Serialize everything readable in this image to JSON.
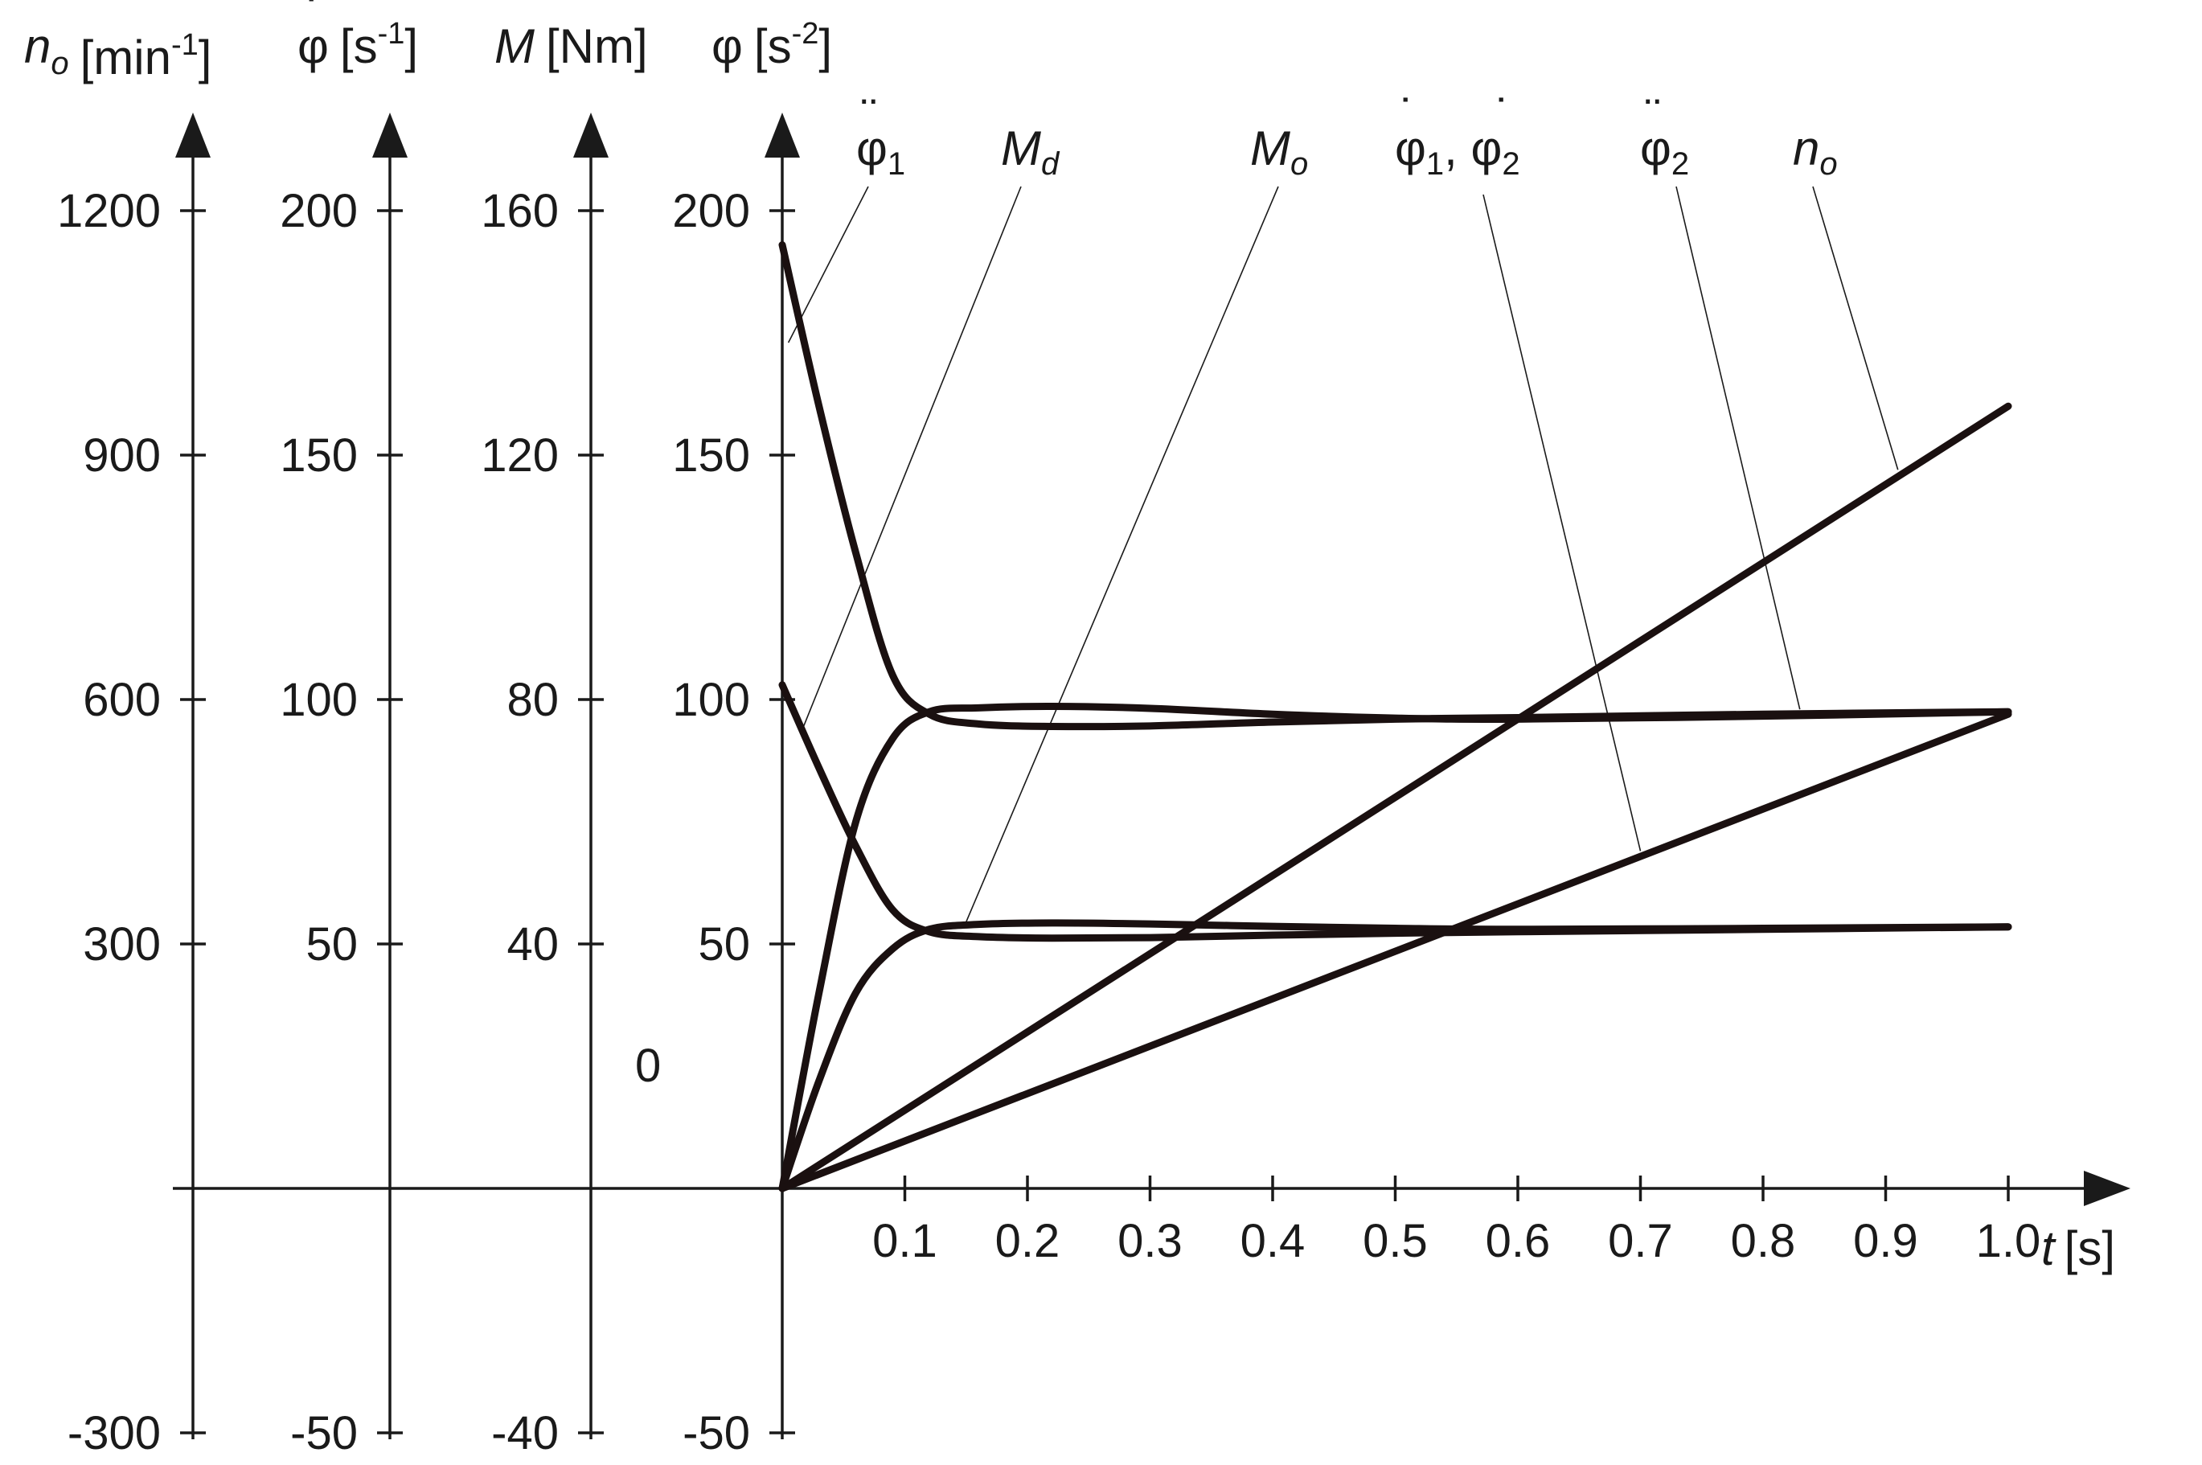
{
  "chart_data": {
    "type": "line",
    "axes": {
      "y_axes": [
        {
          "label_symbol": "n",
          "label_subscript": "o",
          "label_unit": "[min",
          "label_unit_sup": "-1",
          "label_unit_end": "]",
          "ticks": [
            "1200",
            "900",
            "600",
            "300",
            "-300"
          ],
          "ylim": [
            -300,
            1200
          ]
        },
        {
          "label_symbol": "φ",
          "label_dots": "˙",
          "label_unit": "[s",
          "label_unit_sup": "-1",
          "label_unit_end": "]",
          "ticks": [
            "200",
            "150",
            "100",
            "50",
            "-50"
          ],
          "ylim": [
            -50,
            200
          ]
        },
        {
          "label_symbol": "M",
          "label_unit": "[Nm]",
          "ticks": [
            "160",
            "120",
            "80",
            "40",
            "-40"
          ],
          "ylim": [
            -40,
            160
          ]
        },
        {
          "label_symbol": "φ",
          "label_unit": "[s",
          "label_unit_sup": "-2",
          "label_unit_end": "]",
          "ticks": [
            "200",
            "150",
            "100",
            "50",
            "-50"
          ],
          "ylim": [
            -50,
            200
          ]
        }
      ],
      "zero_label": "0",
      "x_axis": {
        "label_symbol": "t",
        "label_unit": "[s]",
        "ticks": [
          "0.1",
          "0.2",
          "0.3",
          "0.4",
          "0.5",
          "0.6",
          "0.7",
          "0.8",
          "0.9",
          "1.0"
        ],
        "xlim": [
          0,
          1.0
        ]
      }
    },
    "series_labels": [
      {
        "id": "phi1dd",
        "text": "φ",
        "sub": "1",
        "dots": "¨"
      },
      {
        "id": "Md",
        "text": "M",
        "sub": "d"
      },
      {
        "id": "Mo",
        "text": "M",
        "sub": "o"
      },
      {
        "id": "phidot",
        "text": "φ",
        "sub": "1",
        "dots": "˙",
        "text2": "φ",
        "sub2": "2",
        "dots2": "˙",
        "sep": ", "
      },
      {
        "id": "phi2dd",
        "text": "φ",
        "sub": "2",
        "dots": "¨"
      },
      {
        "id": "no",
        "text": "n",
        "sub": "o"
      }
    ],
    "series": [
      {
        "id": "phi1dd",
        "x": [
          0,
          0.03,
          0.06,
          0.09,
          0.12,
          0.16,
          0.22,
          0.3,
          0.4,
          0.5,
          0.6,
          0.8,
          1.0
        ],
        "y": [
          193,
          160,
          130,
          105,
          97,
          95,
          94.5,
          94.6,
          95.4,
          96,
          96.3,
          97,
          97.5
        ]
      },
      {
        "id": "phi2dd",
        "x": [
          0,
          0.03,
          0.06,
          0.09,
          0.12,
          0.16,
          0.22,
          0.3,
          0.4,
          0.5,
          0.6,
          0.8,
          1.0
        ],
        "y": [
          0,
          40,
          75,
          92,
          97.5,
          98.3,
          98.6,
          98.2,
          97,
          96.2,
          96,
          96.6,
          97.5
        ]
      },
      {
        "id": "Md",
        "x": [
          0,
          0.03,
          0.06,
          0.09,
          0.12,
          0.16,
          0.22,
          0.3,
          0.4,
          0.5,
          0.6,
          0.8,
          1.0
        ],
        "y": [
          103,
          86,
          70,
          57,
          52.5,
          51.5,
          51.2,
          51.3,
          51.8,
          52.2,
          52.5,
          53,
          53.5
        ]
      },
      {
        "id": "Mo",
        "x": [
          0,
          0.03,
          0.06,
          0.09,
          0.12,
          0.16,
          0.22,
          0.3,
          0.4,
          0.5,
          0.6,
          0.8,
          1.0
        ],
        "y": [
          0,
          22,
          40,
          49,
          53,
          54,
          54.3,
          54.1,
          53.6,
          53.2,
          53,
          53.2,
          53.5
        ]
      },
      {
        "id": "no",
        "x": [
          0,
          1.0
        ],
        "y": [
          0,
          160
        ]
      },
      {
        "id": "phidot",
        "x": [
          0,
          1.0
        ],
        "y": [
          0,
          97
        ]
      }
    ]
  }
}
